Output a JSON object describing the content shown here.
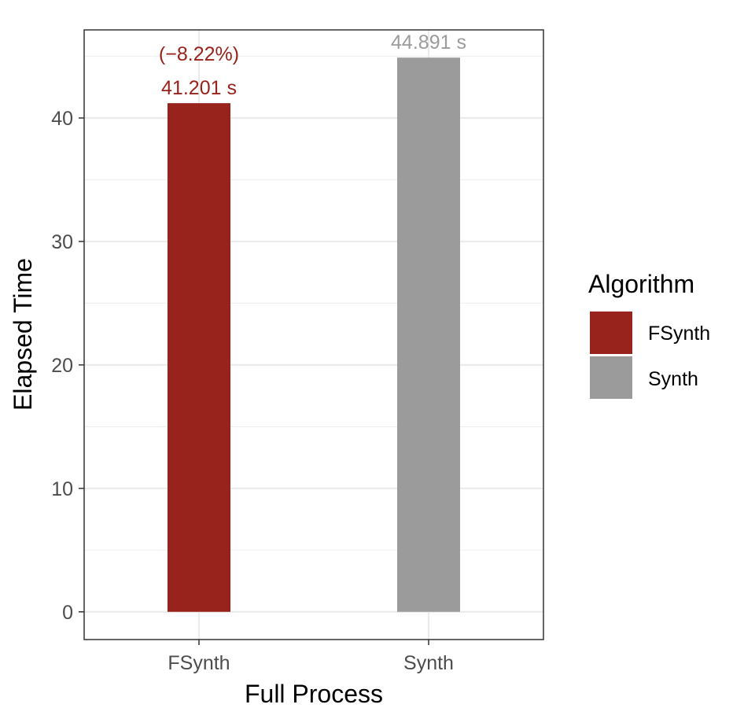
{
  "chart_data": {
    "type": "bar",
    "categories": [
      "FSynth",
      "Synth"
    ],
    "values": [
      41.201,
      44.891
    ],
    "colors": [
      "#98231c",
      "#9b9b9b"
    ],
    "value_labels": [
      "41.201 s",
      "44.891 s"
    ],
    "annotations": [
      "(−8.22%)",
      ""
    ],
    "xlabel": "Full Process",
    "ylabel": "Elapsed Time",
    "ylim": [
      -2.245,
      47.136
    ],
    "yticks": [
      0,
      10,
      20,
      30,
      40
    ],
    "ytick_labels": [
      "0",
      "10",
      "20",
      "30",
      "40"
    ],
    "grid": true,
    "legend": {
      "title": "Algorithm",
      "position": "right",
      "items": [
        {
          "label": "FSynth",
          "color": "#98231c"
        },
        {
          "label": "Synth",
          "color": "#9b9b9b"
        }
      ]
    }
  }
}
